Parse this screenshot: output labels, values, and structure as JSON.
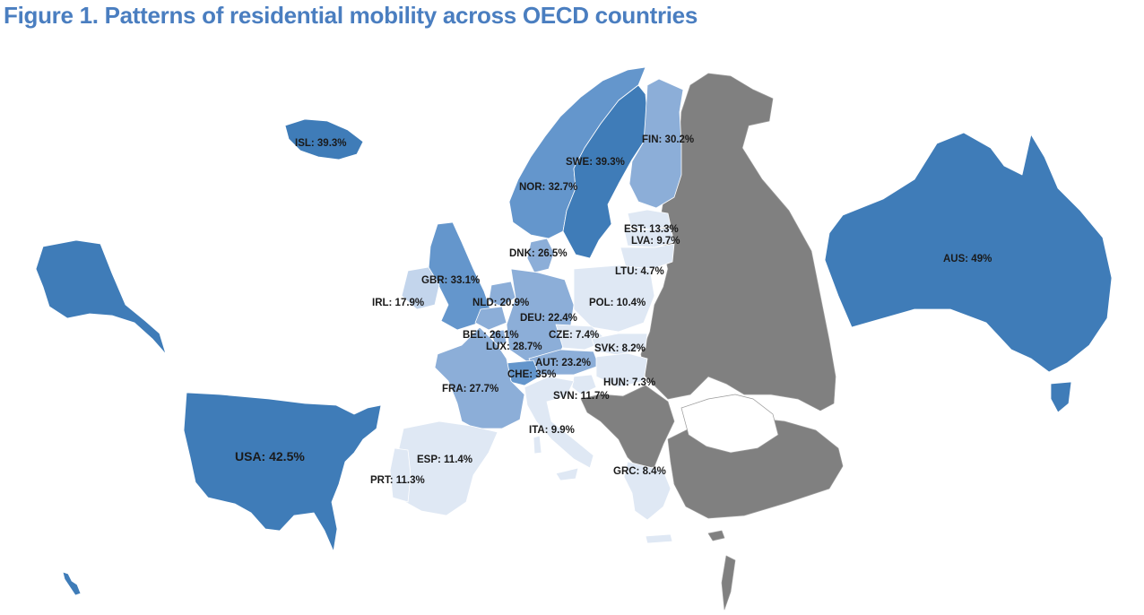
{
  "title": "Figure 1. Patterns of residential mobility across OECD countries",
  "colors": {
    "very_light": "#dfe8f4",
    "light": "#c3d5ec",
    "medium": "#8caed8",
    "medium_dark": "#6496cc",
    "dark": "#3f7cb8",
    "non_oecd": "#808080"
  },
  "countries": [
    {
      "code": "ISL",
      "label": "ISL: 39.3%",
      "value": 39.3
    },
    {
      "code": "FIN",
      "label": "FIN: 30.2%",
      "value": 30.2
    },
    {
      "code": "SWE",
      "label": "SWE: 39.3%",
      "value": 39.3
    },
    {
      "code": "NOR",
      "label": "NOR: 32.7%",
      "value": 32.7
    },
    {
      "code": "EST",
      "label": "EST: 13.3%",
      "value": 13.3
    },
    {
      "code": "LVA",
      "label": "LVA: 9.7%",
      "value": 9.7
    },
    {
      "code": "DNK",
      "label": "DNK: 26.5%",
      "value": 26.5
    },
    {
      "code": "LTU",
      "label": "LTU: 4.7%",
      "value": 4.7
    },
    {
      "code": "GBR",
      "label": "GBR: 33.1%",
      "value": 33.1
    },
    {
      "code": "IRL",
      "label": "IRL: 17.9%",
      "value": 17.9
    },
    {
      "code": "NLD",
      "label": "NLD: 20.9%",
      "value": 20.9
    },
    {
      "code": "POL",
      "label": "POL: 10.4%",
      "value": 10.4
    },
    {
      "code": "DEU",
      "label": "DEU: 22.4%",
      "value": 22.4
    },
    {
      "code": "BEL",
      "label": "BEL: 26.1%",
      "value": 26.1
    },
    {
      "code": "CZE",
      "label": "CZE: 7.4%",
      "value": 7.4
    },
    {
      "code": "LUX",
      "label": "LUX: 28.7%",
      "value": 28.7
    },
    {
      "code": "SVK",
      "label": "SVK: 8.2%",
      "value": 8.2
    },
    {
      "code": "AUT",
      "label": "AUT: 23.2%",
      "value": 23.2
    },
    {
      "code": "CHE",
      "label": "CHE: 35%",
      "value": 35
    },
    {
      "code": "HUN",
      "label": "HUN: 7.3%",
      "value": 7.3
    },
    {
      "code": "FRA",
      "label": "FRA: 27.7%",
      "value": 27.7
    },
    {
      "code": "SVN",
      "label": "SVN: 11.7%",
      "value": 11.7
    },
    {
      "code": "ITA",
      "label": "ITA: 9.9%",
      "value": 9.9
    },
    {
      "code": "ESP",
      "label": "ESP: 11.4%",
      "value": 11.4
    },
    {
      "code": "PRT",
      "label": "PRT: 11.3%",
      "value": 11.3
    },
    {
      "code": "GRC",
      "label": "GRC: 8.4%",
      "value": 8.4
    },
    {
      "code": "USA",
      "label": "USA: 42.5%",
      "value": 42.5
    },
    {
      "code": "AUS",
      "label": "AUS: 49%",
      "value": 49
    }
  ]
}
